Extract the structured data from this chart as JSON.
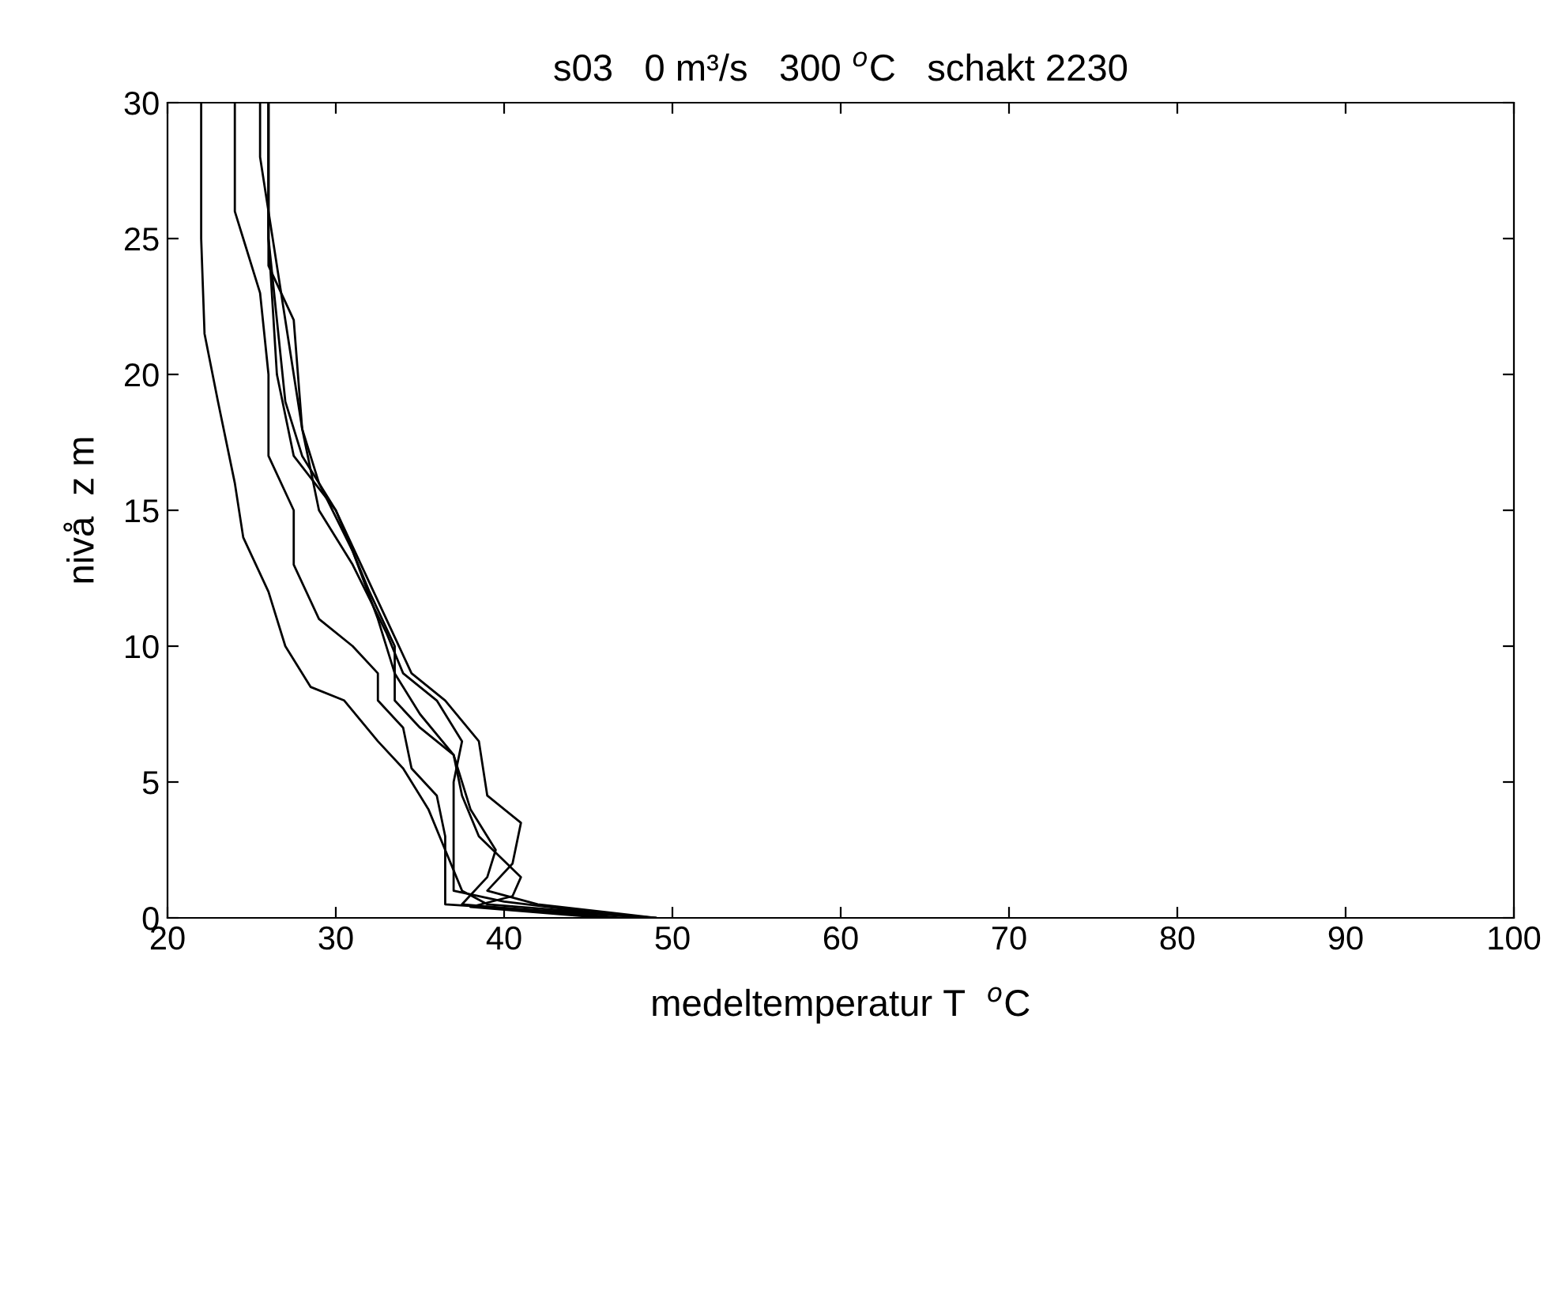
{
  "chart_data": {
    "type": "line",
    "title": "s03   0 m³/s   300 $^{o}$C   schakt 2230",
    "xlabel": "medeltemperatur T  $^{o}$C",
    "ylabel": "nivå  z m",
    "xlim": [
      20,
      100
    ],
    "xticks": [
      20,
      30,
      40,
      50,
      60,
      70,
      80,
      90,
      100
    ],
    "ylim": [
      0,
      30
    ],
    "yticks": [
      0,
      5,
      10,
      15,
      20,
      25,
      30
    ],
    "grid": false,
    "legend": false,
    "marker": "none",
    "line_style": "solid",
    "series": [
      {
        "color": "#000000",
        "x": [
          22,
          22,
          22.2,
          23,
          24,
          24.5,
          26,
          27,
          28.5,
          30.5,
          32.5,
          34,
          35.5,
          36.5,
          37.5,
          39,
          49
        ],
        "values": [
          30,
          25,
          21.5,
          19,
          16,
          14,
          12,
          10,
          8.5,
          8,
          6.5,
          5.5,
          4,
          2.5,
          1,
          0.5,
          0
        ]
      },
      {
        "color": "#000000",
        "x": [
          24,
          24,
          24.5,
          25.5,
          26,
          26,
          27.5,
          27.5,
          29,
          31,
          32.5,
          32.5,
          34,
          34.5,
          36,
          36.5,
          36.5,
          36.5,
          44,
          49
        ],
        "values": [
          30,
          26,
          25,
          23,
          20,
          17,
          15,
          13,
          11,
          10,
          9,
          8,
          7,
          5.5,
          4.5,
          3,
          1.5,
          0.5,
          0.2,
          0
        ]
      },
      {
        "color": "#000000",
        "x": [
          25.5,
          25.5,
          26,
          27,
          28,
          29,
          31,
          33,
          34,
          36,
          37.5,
          37,
          37,
          37,
          40,
          48
        ],
        "values": [
          30,
          28,
          26,
          22,
          18,
          15,
          13,
          10.5,
          9,
          8,
          6.5,
          5,
          3,
          1,
          0.6,
          0
        ]
      },
      {
        "color": "#000000",
        "x": [
          26,
          26,
          26.5,
          27.5,
          30,
          31.5,
          33,
          34.5,
          36.5,
          38.5,
          39,
          41,
          40.5,
          39,
          42,
          49
        ],
        "values": [
          30,
          25,
          20,
          17,
          15,
          13,
          11,
          9,
          8,
          6.5,
          4.5,
          3.5,
          2,
          1,
          0.5,
          0
        ]
      },
      {
        "color": "#000000",
        "x": [
          26,
          26,
          27.5,
          28,
          29,
          31,
          32.5,
          33.5,
          35,
          37,
          38,
          39.5,
          39,
          37.5,
          47
        ],
        "values": [
          30,
          24,
          22,
          18,
          16,
          13.5,
          11,
          9,
          7.5,
          6,
          4,
          2.5,
          1.5,
          0.5,
          0
        ]
      },
      {
        "color": "#000000",
        "x": [
          26,
          26,
          26.5,
          27,
          28,
          30,
          32,
          33.5,
          33.5,
          35,
          37,
          37.5,
          38.5,
          41,
          40.5,
          38,
          46
        ],
        "values": [
          30,
          25,
          22,
          19,
          17,
          15,
          12,
          10,
          8,
          7,
          6,
          4.5,
          3,
          1.5,
          0.8,
          0.4,
          0
        ]
      }
    ]
  }
}
